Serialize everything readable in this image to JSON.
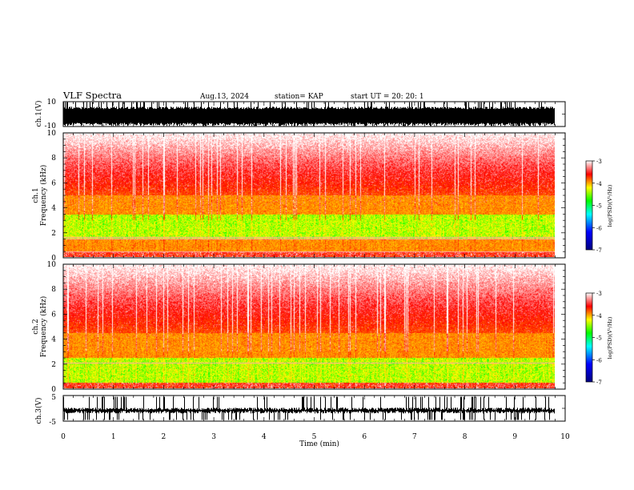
{
  "header": {
    "title": "VLF Spectra",
    "date": "Aug.13, 2024",
    "station": "station= KAP",
    "start": "start UT = 20: 20: 1"
  },
  "colors": {
    "frame": "#000000",
    "colormap": [
      "#00007f",
      "#0000ff",
      "#00ffff",
      "#00ff00",
      "#ffff00",
      "#ff7f00",
      "#ff0000",
      "#ffffff"
    ]
  },
  "chart_data": [
    {
      "type": "line",
      "panel": "ch1-waveform",
      "ylabel": "ch.1(V)",
      "ylim": [
        -10,
        10
      ],
      "yticks": [
        "10",
        "-10"
      ],
      "xlim": [
        0,
        9.83
      ],
      "envelope": {
        "max_typical": 5,
        "min_typical": -8
      }
    },
    {
      "type": "heatmap",
      "panel": "ch1-spectrogram",
      "ylabel": "ch.1 Frequency (kHz)",
      "ylim": [
        0,
        10
      ],
      "yticks": [
        "0",
        "2",
        "4",
        "6",
        "8",
        "10"
      ],
      "xlim": [
        0,
        9.83
      ],
      "colorbar": {
        "label": "log(PSD)(V²/Hz)",
        "range": [
          -7,
          -3
        ],
        "ticks": [
          "-3",
          "-4",
          "-5",
          "-6",
          "-7"
        ]
      },
      "bands_kHz": [
        [
          0.5,
          5.0
        ],
        [
          1.5,
          3.5
        ]
      ]
    },
    {
      "type": "heatmap",
      "panel": "ch2-spectrogram",
      "ylabel": "ch.2 Frequency (kHz)",
      "ylim": [
        0,
        10
      ],
      "yticks": [
        "0",
        "2",
        "4",
        "6",
        "8",
        "10"
      ],
      "xlim": [
        0,
        9.83
      ],
      "colorbar": {
        "label": "log(PSD)(V²/Hz)",
        "range": [
          -7,
          -3
        ],
        "ticks": [
          "-3",
          "-4",
          "-5",
          "-6",
          "-7"
        ]
      },
      "bands_kHz": [
        [
          0.5,
          4.5
        ],
        [
          0.5,
          2.5
        ]
      ]
    },
    {
      "type": "line",
      "panel": "ch3-waveform",
      "ylabel": "ch.3(V)",
      "ylim": [
        -5,
        5
      ],
      "yticks": [
        "5",
        "-5"
      ],
      "xlim": [
        0,
        9.83
      ],
      "envelope": {
        "max_typical": -0.2,
        "min_typical": -1.5
      }
    }
  ],
  "xaxis": {
    "label": "Time (min)",
    "range": [
      0,
      10
    ],
    "ticks": [
      "0",
      "1",
      "2",
      "3",
      "4",
      "5",
      "6",
      "7",
      "8",
      "9",
      "10"
    ]
  }
}
